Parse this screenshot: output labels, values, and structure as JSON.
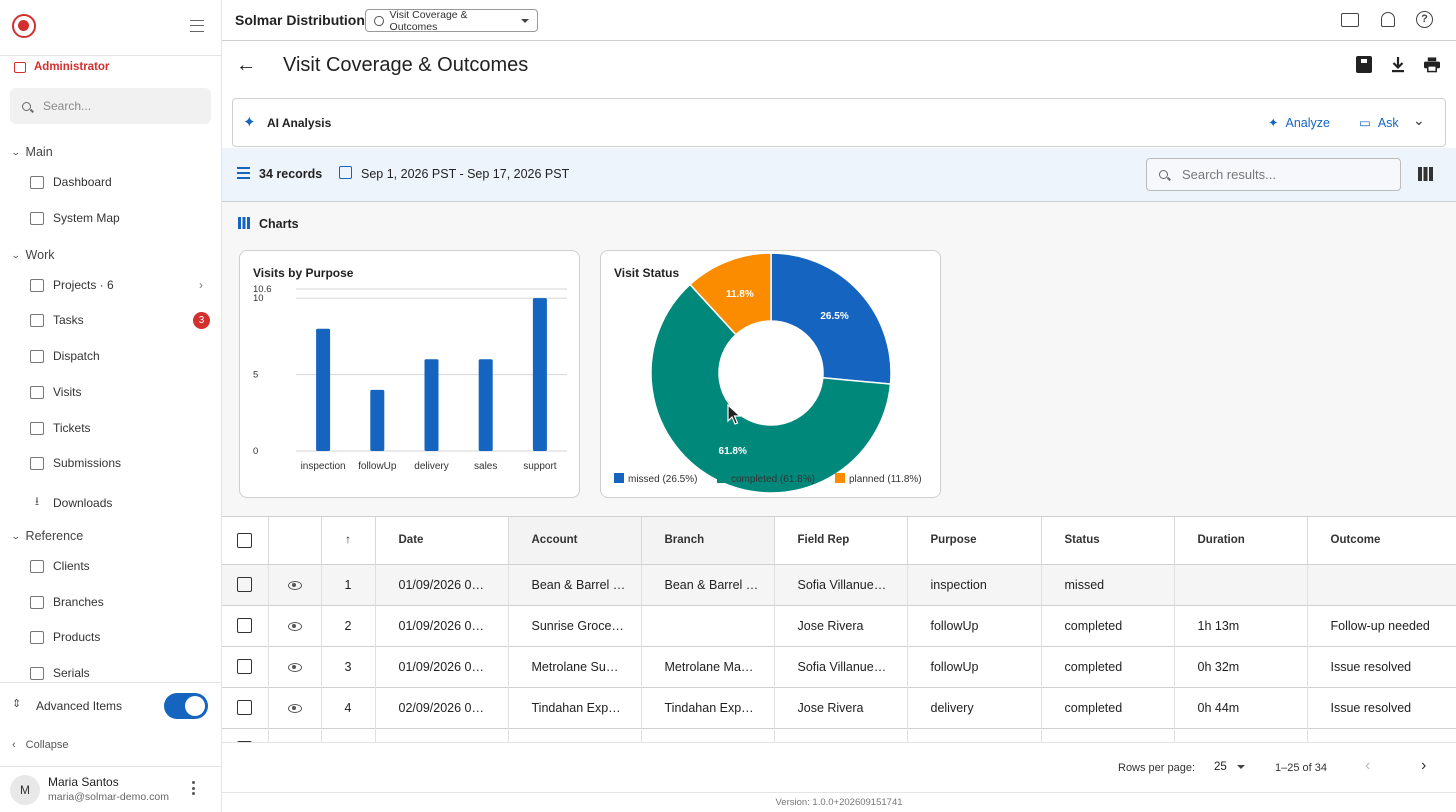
{
  "app": {
    "company": "Solmar Distribution",
    "report_selector": "Visit Coverage & Outcomes",
    "version": "Version: 1.0.0+202609151741"
  },
  "sidebar": {
    "role": "Administrator",
    "search_placeholder": "Search...",
    "sections": [
      {
        "label": "Main"
      },
      {
        "label": "Work"
      },
      {
        "label": "Reference"
      }
    ],
    "items": [
      {
        "label": "Dashboard",
        "icon": "dashboard-icon"
      },
      {
        "label": "System Map",
        "icon": "sitemap-icon"
      },
      {
        "label": "Projects · 6",
        "icon": "folder-icon"
      },
      {
        "label": "Tasks",
        "icon": "task-icon",
        "badge": "3"
      },
      {
        "label": "Dispatch",
        "icon": "dispatch-icon"
      },
      {
        "label": "Visits",
        "icon": "calendar-icon"
      },
      {
        "label": "Tickets",
        "icon": "ticket-icon"
      },
      {
        "label": "Submissions",
        "icon": "clipboard-icon"
      },
      {
        "label": "Downloads",
        "icon": "download-icon"
      },
      {
        "label": "Clients",
        "icon": "building-icon"
      },
      {
        "label": "Branches",
        "icon": "store-icon"
      },
      {
        "label": "Products",
        "icon": "box-icon"
      },
      {
        "label": "Serials",
        "icon": "barcode-icon"
      }
    ],
    "advanced_label": "Advanced Items",
    "advanced_on": true,
    "collapse_label": "Collapse",
    "user": {
      "initial": "M",
      "name": "Maria Santos",
      "email": "maria@solmar-demo.com"
    }
  },
  "page": {
    "title": "Visit Coverage & Outcomes",
    "ai": {
      "title": "AI Analysis",
      "analyze_label": "Analyze",
      "ask_label": "Ask"
    },
    "records": "34 records",
    "date_range": "Sep 1, 2026  PST - Sep 17, 2026  PST",
    "search_placeholder": "Search results...",
    "charts_title": "Charts"
  },
  "chart_data": [
    {
      "type": "bar",
      "title": "Visits by Purpose",
      "categories": [
        "inspection",
        "followUp",
        "delivery",
        "sales",
        "support"
      ],
      "values": [
        8,
        4,
        6,
        6,
        10
      ],
      "ylim": [
        0,
        10.6
      ],
      "yticks": [
        "0",
        "5",
        "10",
        "10.6"
      ],
      "color": "#1565c0"
    },
    {
      "type": "pie",
      "title": "Visit Status",
      "donut": true,
      "slices": [
        {
          "label": "missed",
          "value": 26.5,
          "text": "26.5%",
          "legend": "missed (26.5%)",
          "color": "#1565c0"
        },
        {
          "label": "completed",
          "value": 61.8,
          "text": "61.8%",
          "legend": "completed (61.8%)",
          "color": "#00897b"
        },
        {
          "label": "planned",
          "value": 11.8,
          "text": "11.8%",
          "legend": "planned (11.8%)",
          "color": "#fb8c00"
        }
      ]
    }
  ],
  "table": {
    "columns": [
      "Date",
      "Account",
      "Branch",
      "Field Rep",
      "Purpose",
      "Status",
      "Duration",
      "Outcome"
    ],
    "rows": [
      {
        "num": "1",
        "date": "01/09/2026 0…",
        "account": "Bean & Barrel …",
        "branch": "Bean & Barrel …",
        "rep": "Sofia Villanue…",
        "purpose": "inspection",
        "status": "missed",
        "duration": "",
        "outcome": ""
      },
      {
        "num": "2",
        "date": "01/09/2026 0…",
        "account": "Sunrise Groce…",
        "branch": "",
        "rep": "Jose Rivera",
        "purpose": "followUp",
        "status": "completed",
        "duration": "1h 13m",
        "outcome": "Follow-up needed"
      },
      {
        "num": "3",
        "date": "01/09/2026 0…",
        "account": "Metrolane Su…",
        "branch": "Metrolane Ma…",
        "rep": "Sofia Villanue…",
        "purpose": "followUp",
        "status": "completed",
        "duration": "0h 32m",
        "outcome": "Issue resolved"
      },
      {
        "num": "4",
        "date": "02/09/2026 0…",
        "account": "Tindahan Exp…",
        "branch": "Tindahan Exp…",
        "rep": "Jose Rivera",
        "purpose": "delivery",
        "status": "completed",
        "duration": "0h 44m",
        "outcome": "Issue resolved"
      }
    ]
  },
  "pagination": {
    "rows_per_page_label": "Rows per page:",
    "rows_per_page": "25",
    "range": "1–25 of 34"
  }
}
